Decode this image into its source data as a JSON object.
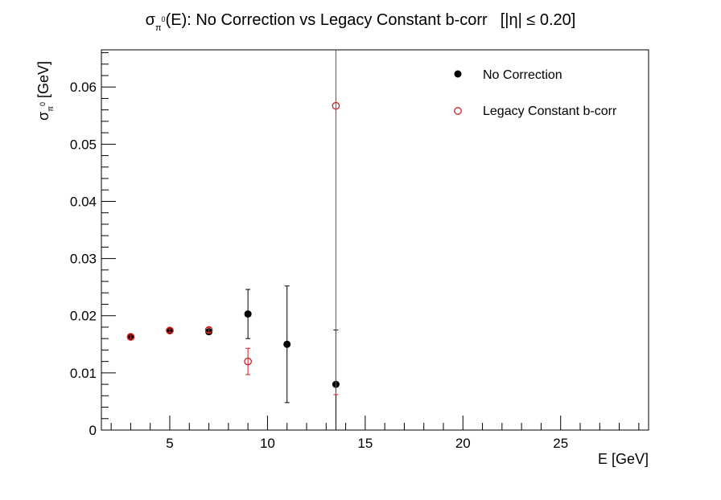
{
  "chart_data": {
    "type": "scatter",
    "title": {
      "sigma": "σ",
      "sub": "π",
      "sup": "0",
      "rest": "(E): No Correction vs Legacy Constant b-corr",
      "cut": "[|η| ≤ 0.20]"
    },
    "xlabel": "E [GeV]",
    "ylabel": {
      "sigma": "σ",
      "sub": "π",
      "sup": "0",
      "rest": " [GeV]"
    },
    "xlim": [
      1.5,
      29.5
    ],
    "ylim": [
      0,
      0.0665
    ],
    "xticks": [
      5,
      10,
      15,
      20,
      25
    ],
    "yticks": [
      0,
      0.01,
      0.02,
      0.03,
      0.04,
      0.05,
      0.06
    ],
    "ytick_labels": [
      "0",
      "0.01",
      "0.02",
      "0.03",
      "0.04",
      "0.05",
      "0.06"
    ],
    "legend_position": "top-right",
    "series": [
      {
        "name": "No Correction",
        "color": "#000000",
        "marker": "filled-circle",
        "x": [
          3,
          5,
          7,
          9,
          11,
          13.5
        ],
        "y": [
          0.0163,
          0.0174,
          0.0172,
          0.0203,
          0.015,
          0.008
        ],
        "err": [
          0.0003,
          0.0003,
          0.0004,
          0.0043,
          0.0102,
          0.0095
        ]
      },
      {
        "name": "Legacy Constant b-corr",
        "color": "#cc2222",
        "marker": "open-circle",
        "x": [
          3,
          5,
          7,
          9,
          13.5
        ],
        "y": [
          0.0163,
          0.0174,
          0.0175,
          0.012,
          0.0567
        ],
        "err": [
          0.0003,
          0.0003,
          0.0004,
          0.0023,
          0.0505
        ]
      }
    ]
  }
}
